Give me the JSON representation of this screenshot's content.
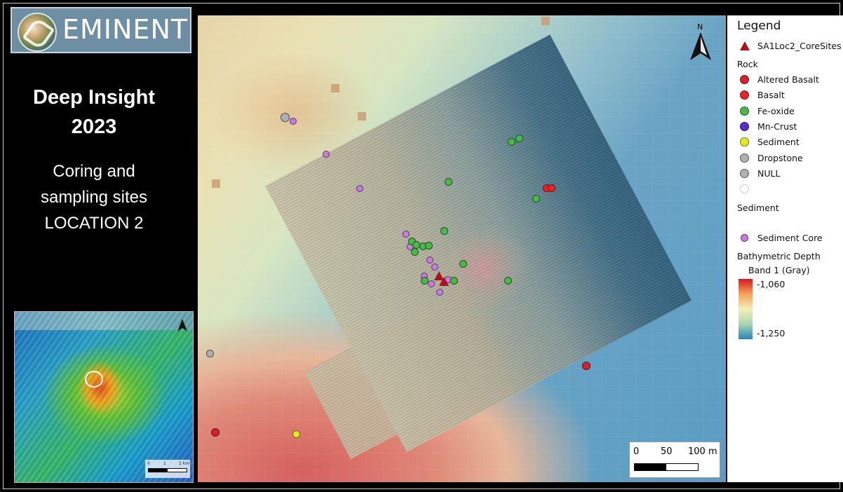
{
  "brand": {
    "name": "EMINENT"
  },
  "left_panel": {
    "title_line1": "Deep Insight",
    "title_line2": "2023",
    "sub_line1": "Coring and",
    "sub_line2": "sampling sites",
    "sub_line3": "LOCATION 2"
  },
  "inset_map": {
    "scale_labels": [
      "0",
      "1",
      "2 km"
    ]
  },
  "map": {
    "north_label": "N",
    "scale": {
      "labels": [
        "0",
        "50",
        "100 m"
      ]
    }
  },
  "legend": {
    "title": "Legend",
    "core_sites": "SA1Loc2_CoreSites",
    "rock_header": "Rock",
    "rock_items": [
      {
        "label": "Altered Basalt",
        "color": "#d3232f"
      },
      {
        "label": "Basalt",
        "color": "#e8262a"
      },
      {
        "label": "Fe-oxide",
        "color": "#4cb84c"
      },
      {
        "label": "Mn-Crust",
        "color": "#5a2fd0"
      },
      {
        "label": "Sediment",
        "color": "#e3e81f"
      },
      {
        "label": "Dropstone",
        "color": "#b0b0b0"
      },
      {
        "label": "NULL",
        "color": "#b0b0b0"
      }
    ],
    "sediment_header": "Sediment",
    "sediment_core": "Sediment Core",
    "bathy_header": "Bathymetric Depth",
    "bathy_band": "Band 1 (Gray)",
    "bathy_max": "-1,060",
    "bathy_min": "-1,250"
  }
}
